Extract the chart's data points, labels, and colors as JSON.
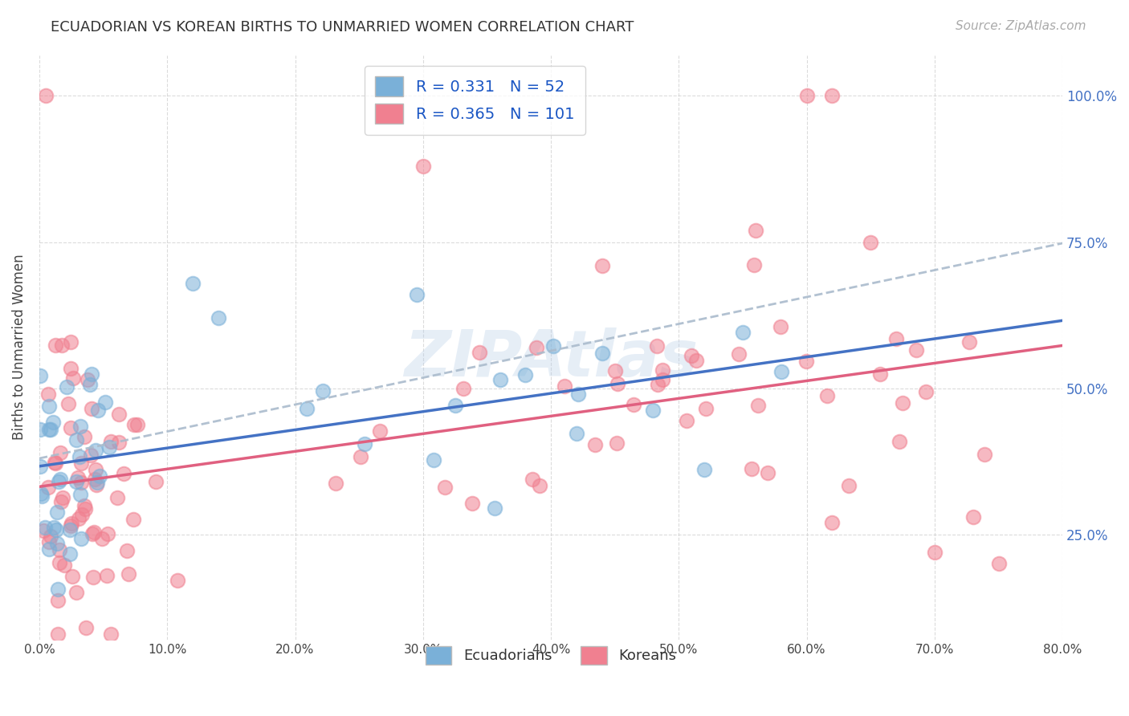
{
  "title": "ECUADORIAN VS KOREAN BIRTHS TO UNMARRIED WOMEN CORRELATION CHART",
  "source": "Source: ZipAtlas.com",
  "ylabel": "Births to Unmarried Women",
  "watermark": "ZIPAtlas",
  "ecuadorian_color": "#7ab0d8",
  "korean_color": "#f08090",
  "trend_ecuador_color": "#4472c4",
  "trend_korea_color": "#e06080",
  "trend_dashed_color": "#aabbcc",
  "background_color": "#ffffff",
  "grid_color": "#cccccc",
  "R_ecuador": 0.331,
  "N_ecuador": 52,
  "R_korea": 0.365,
  "N_korea": 101,
  "xlim": [
    0.0,
    0.8
  ],
  "ylim": [
    0.07,
    1.07
  ],
  "ytick_vals": [
    0.25,
    0.5,
    0.75,
    1.0
  ],
  "ytick_labels": [
    "25.0%",
    "50.0%",
    "75.0%",
    "100.0%"
  ],
  "xtick_vals": [
    0.0,
    0.1,
    0.2,
    0.3,
    0.4,
    0.5,
    0.6,
    0.7,
    0.8
  ],
  "xtick_labels": [
    "0.0%",
    "10.0%",
    "20.0%",
    "30.0%",
    "40.0%",
    "50.0%",
    "60.0%",
    "70.0%",
    "80.0%"
  ],
  "ec_trend_intercept": 0.375,
  "ec_trend_slope": 0.22,
  "ko_trend_intercept": 0.315,
  "ko_trend_slope": 0.26
}
